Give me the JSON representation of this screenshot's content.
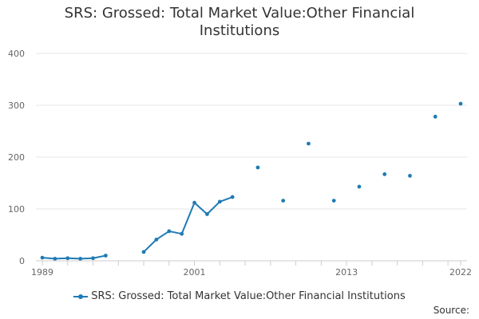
{
  "chart_data": {
    "type": "line",
    "title_line1": "SRS: Grossed: Total Market Value:Other Financial",
    "title_line2": "Institutions",
    "series": [
      {
        "name": "SRS: Grossed: Total Market Value:Other Financial Institutions",
        "color": "#1f7bb5",
        "x": [
          1989,
          1990,
          1991,
          1992,
          1993,
          1994,
          1995,
          1996,
          1997,
          1998,
          1999,
          2000,
          2001,
          2002,
          2003,
          2004,
          2005,
          2006,
          2007,
          2008,
          2009,
          2010,
          2011,
          2012,
          2013,
          2014,
          2015,
          2016,
          2017,
          2018,
          2019,
          2020,
          2021,
          2022
        ],
        "values": [
          6,
          4,
          5,
          4,
          5,
          10,
          null,
          null,
          17,
          41,
          57,
          52,
          112,
          90,
          114,
          123,
          null,
          180,
          null,
          116,
          null,
          226,
          null,
          116,
          null,
          143,
          null,
          167,
          null,
          164,
          null,
          278,
          null,
          303
        ]
      }
    ],
    "ylim": [
      0,
      400
    ],
    "yticks": [
      "0",
      "100",
      "200",
      "300",
      "400"
    ],
    "xlim": [
      1989,
      2022
    ],
    "xtick_labels": [
      "1989",
      "2001",
      "2013",
      "2022"
    ],
    "xtick_values": [
      1989,
      2001,
      2013,
      2022
    ],
    "xlabel": "",
    "ylabel": "",
    "grid": true,
    "legend": "bottom"
  },
  "source_label": "Source:"
}
